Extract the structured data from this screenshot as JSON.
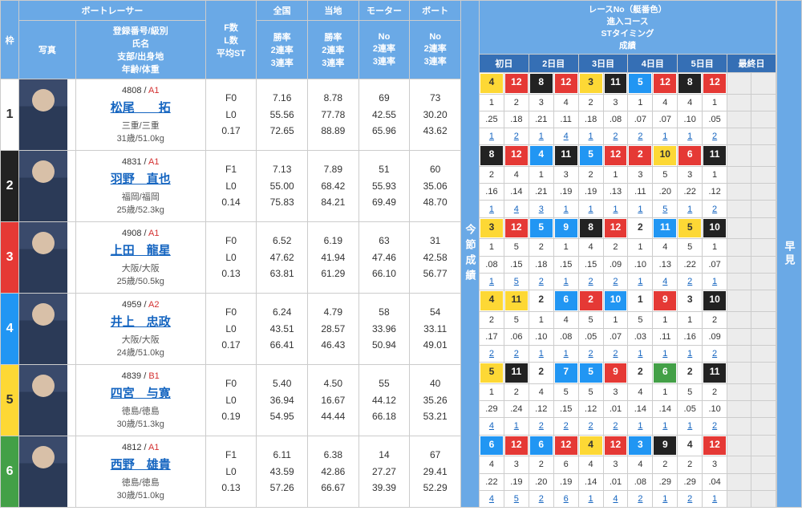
{
  "headers": {
    "waku": "枠",
    "boatracer": "ボートレーサー",
    "photo": "写真",
    "racer_info": "登録番号/級別\n氏名\n支部/出身地\n年齢/体重",
    "flst": "F数\nL数\n平均ST",
    "national": "全国",
    "local": "当地",
    "motor": "モーター",
    "boat": "ボート",
    "ratecol": "勝率\n2連率\n3連率",
    "nocol": "No\n2連率\n3連率",
    "race_header": "レースNo（艇番色）\n進入コース\nSTタイミング\n成績",
    "days": [
      "初日",
      "2日目",
      "3日目",
      "4日目",
      "5日目",
      "最終日"
    ],
    "mid_label": "今節成績",
    "far_label": "早見"
  },
  "frame_colors": [
    "#ffffff",
    "#222222",
    "#e53935",
    "#2196f3",
    "#fdd835",
    "#43a047"
  ],
  "racers": [
    {
      "waku": 1,
      "reg": "4808",
      "cls": "A1",
      "name": "松尾　　拓",
      "loc": "三重/三重",
      "age": "31歳/51.0kg",
      "flst": [
        "F0",
        "L0",
        "0.17"
      ],
      "national": [
        "7.16",
        "55.56",
        "72.65"
      ],
      "local": [
        "8.78",
        "77.78",
        "88.89"
      ],
      "motor": [
        "69",
        "42.55",
        "65.96"
      ],
      "boat": [
        "73",
        "30.20",
        "43.62"
      ],
      "days": [
        {
          "race": [
            4,
            12
          ],
          "crs": [
            "1",
            "2"
          ],
          "st": [
            ".25",
            ".18"
          ],
          "res": [
            "1",
            "2"
          ]
        },
        {
          "race": [
            8,
            12
          ],
          "crs": [
            "3",
            "4"
          ],
          "st": [
            ".21",
            ".11"
          ],
          "res": [
            "1",
            "4"
          ]
        },
        {
          "race": [
            3,
            11
          ],
          "crs": [
            "2",
            "3"
          ],
          "st": [
            ".18",
            ".08"
          ],
          "res": [
            "1",
            "2"
          ]
        },
        {
          "race": [
            5,
            12
          ],
          "crs": [
            "1",
            "4"
          ],
          "st": [
            ".07",
            ".07"
          ],
          "res": [
            "2",
            "1"
          ]
        },
        {
          "race": [
            8,
            12
          ],
          "crs": [
            "4",
            "1"
          ],
          "st": [
            ".10",
            ".05"
          ],
          "res": [
            "1",
            "2"
          ]
        }
      ]
    },
    {
      "waku": 2,
      "reg": "4831",
      "cls": "A1",
      "name": "羽野　直也",
      "loc": "福岡/福岡",
      "age": "25歳/52.3kg",
      "flst": [
        "F1",
        "L0",
        "0.14"
      ],
      "national": [
        "7.13",
        "55.00",
        "75.83"
      ],
      "local": [
        "7.89",
        "68.42",
        "84.21"
      ],
      "motor": [
        "51",
        "55.93",
        "69.49"
      ],
      "boat": [
        "60",
        "35.06",
        "48.70"
      ],
      "days": [
        {
          "race": [
            8,
            12
          ],
          "crs": [
            "2",
            "4"
          ],
          "st": [
            ".16",
            ".14"
          ],
          "res": [
            "1",
            "4"
          ]
        },
        {
          "race": [
            4,
            11
          ],
          "crs": [
            "1",
            "3"
          ],
          "st": [
            ".21",
            ".19"
          ],
          "res": [
            "3",
            "1"
          ]
        },
        {
          "race": [
            5,
            12
          ],
          "crs": [
            "2",
            "1"
          ],
          "st": [
            ".19",
            ".13"
          ],
          "res": [
            "1",
            "1"
          ]
        },
        {
          "race": [
            2,
            10
          ],
          "crs": [
            "3",
            "5"
          ],
          "st": [
            ".11",
            ".20"
          ],
          "res": [
            "1",
            "5"
          ]
        },
        {
          "race": [
            6,
            11
          ],
          "crs": [
            "3",
            "1"
          ],
          "st": [
            ".22",
            ".12"
          ],
          "res": [
            "1",
            "2"
          ]
        }
      ]
    },
    {
      "waku": 3,
      "reg": "4908",
      "cls": "A1",
      "name": "上田　龍星",
      "loc": "大阪/大阪",
      "age": "25歳/50.5kg",
      "flst": [
        "F0",
        "L0",
        "0.13"
      ],
      "national": [
        "6.52",
        "47.62",
        "63.81"
      ],
      "local": [
        "6.19",
        "41.94",
        "61.29"
      ],
      "motor": [
        "63",
        "47.46",
        "66.10"
      ],
      "boat": [
        "31",
        "42.58",
        "56.77"
      ],
      "days": [
        {
          "race": [
            3,
            12
          ],
          "crs": [
            "1",
            "5"
          ],
          "st": [
            ".08",
            ".15"
          ],
          "res": [
            "1",
            "5"
          ]
        },
        {
          "race": [
            5,
            9
          ],
          "crs": [
            "2",
            "1"
          ],
          "st": [
            ".18",
            ".15"
          ],
          "res": [
            "2",
            "1"
          ]
        },
        {
          "race": [
            8,
            12
          ],
          "crs": [
            "4",
            "2"
          ],
          "st": [
            ".15",
            ".09"
          ],
          "res": [
            "2",
            "2"
          ]
        },
        {
          "race": [
            2,
            11
          ],
          "crs": [
            "1",
            "4"
          ],
          "st": [
            ".10",
            ".13"
          ],
          "res": [
            "1",
            "4"
          ]
        },
        {
          "race": [
            5,
            10
          ],
          "crs": [
            "5",
            "1"
          ],
          "st": [
            ".22",
            ".07"
          ],
          "res": [
            "2",
            "1"
          ]
        }
      ]
    },
    {
      "waku": 4,
      "reg": "4959",
      "cls": "A2",
      "name": "井上　忠政",
      "loc": "大阪/大阪",
      "age": "24歳/51.0kg",
      "flst": [
        "F0",
        "L0",
        "0.17"
      ],
      "national": [
        "6.24",
        "43.51",
        "66.41"
      ],
      "local": [
        "4.79",
        "28.57",
        "46.43"
      ],
      "motor": [
        "58",
        "33.96",
        "50.94"
      ],
      "boat": [
        "54",
        "33.11",
        "49.01"
      ],
      "days": [
        {
          "race": [
            4,
            11
          ],
          "crs": [
            "2",
            "5"
          ],
          "st": [
            ".17",
            ".06"
          ],
          "res": [
            "2",
            "2"
          ]
        },
        {
          "race": [
            2,
            6
          ],
          "crs": [
            "1",
            "4"
          ],
          "st": [
            ".10",
            ".08"
          ],
          "res": [
            "1",
            "1"
          ]
        },
        {
          "race": [
            2,
            10
          ],
          "crs": [
            "5",
            "1"
          ],
          "st": [
            ".05",
            ".07"
          ],
          "res": [
            "2",
            "2"
          ]
        },
        {
          "race": [
            1,
            9
          ],
          "crs": [
            "5",
            "1"
          ],
          "st": [
            ".03",
            ".11"
          ],
          "res": [
            "1",
            "1"
          ]
        },
        {
          "race": [
            3,
            10
          ],
          "crs": [
            "1",
            "2"
          ],
          "st": [
            ".16",
            ".09"
          ],
          "res": [
            "1",
            "2"
          ]
        }
      ]
    },
    {
      "waku": 5,
      "reg": "4839",
      "cls": "B1",
      "name": "四宮　与寛",
      "loc": "徳島/徳島",
      "age": "30歳/51.3kg",
      "flst": [
        "F0",
        "L0",
        "0.19"
      ],
      "national": [
        "5.40",
        "36.94",
        "54.95"
      ],
      "local": [
        "4.50",
        "16.67",
        "44.44"
      ],
      "motor": [
        "55",
        "44.12",
        "66.18"
      ],
      "boat": [
        "40",
        "35.26",
        "53.21"
      ],
      "days": [
        {
          "race": [
            5,
            11
          ],
          "crs": [
            "1",
            "2"
          ],
          "st": [
            ".29",
            ".24"
          ],
          "res": [
            "4",
            "1"
          ]
        },
        {
          "race": [
            2,
            7
          ],
          "crs": [
            "4",
            "5"
          ],
          "st": [
            ".12",
            ".15"
          ],
          "res": [
            "2",
            "2"
          ]
        },
        {
          "race": [
            5,
            9
          ],
          "crs": [
            "5",
            "3"
          ],
          "st": [
            ".12",
            ".01"
          ],
          "res": [
            "2",
            "2"
          ]
        },
        {
          "race": [
            2,
            6
          ],
          "crs": [
            "4",
            "1"
          ],
          "st": [
            ".14",
            ".14"
          ],
          "res": [
            "1",
            "1"
          ]
        },
        {
          "race": [
            2,
            11
          ],
          "crs": [
            "5",
            "2"
          ],
          "st": [
            ".05",
            ".10"
          ],
          "res": [
            "1",
            "2"
          ]
        }
      ]
    },
    {
      "waku": 6,
      "reg": "4812",
      "cls": "A1",
      "name": "西野　雄貴",
      "loc": "徳島/徳島",
      "age": "30歳/51.0kg",
      "flst": [
        "F1",
        "L0",
        "0.13"
      ],
      "national": [
        "6.11",
        "43.59",
        "57.26"
      ],
      "local": [
        "6.38",
        "42.86",
        "66.67"
      ],
      "motor": [
        "14",
        "27.27",
        "39.39"
      ],
      "boat": [
        "67",
        "29.41",
        "52.29"
      ],
      "days": [
        {
          "race": [
            6,
            12
          ],
          "crs": [
            "4",
            "3"
          ],
          "st": [
            ".22",
            ".19"
          ],
          "res": [
            "4",
            "5"
          ]
        },
        {
          "race": [
            6,
            12
          ],
          "crs": [
            "2",
            "6"
          ],
          "st": [
            ".20",
            ".19"
          ],
          "res": [
            "2",
            "6"
          ]
        },
        {
          "race": [
            4,
            12
          ],
          "crs": [
            "4",
            "3"
          ],
          "st": [
            ".14",
            ".01"
          ],
          "res": [
            "1",
            "4"
          ]
        },
        {
          "race": [
            3,
            9
          ],
          "crs": [
            "4",
            "2"
          ],
          "st": [
            ".08",
            ".29"
          ],
          "res": [
            "2",
            "1"
          ]
        },
        {
          "race": [
            4,
            12
          ],
          "crs": [
            "2",
            "3"
          ],
          "st": [
            ".29",
            ".04"
          ],
          "res": [
            "2",
            "1"
          ]
        }
      ]
    }
  ]
}
